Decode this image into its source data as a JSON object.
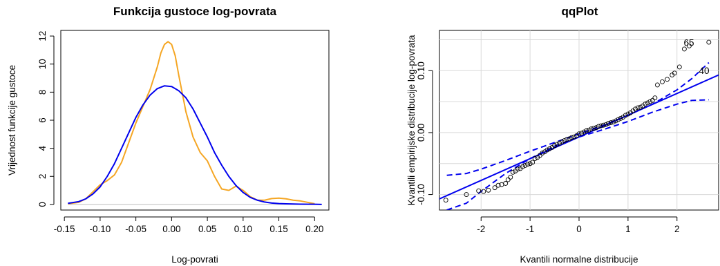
{
  "chart_data": [
    {
      "type": "line",
      "title": "Funkcija gustoce log-povrata",
      "xlabel": "Log-povrati",
      "ylabel": "Vrijednost funkcije gustoce",
      "xlim": [
        -0.155,
        0.22
      ],
      "ylim": [
        -0.4,
        12.4
      ],
      "xticks": [
        "-0.15",
        "-0.10",
        "-0.05",
        "0.00",
        "0.05",
        "0.10",
        "0.15",
        "0.20"
      ],
      "yticks": [
        "0",
        "2",
        "4",
        "6",
        "8",
        "10",
        "12"
      ],
      "grid": false,
      "colors": {
        "empirical": "#f5a623",
        "normal": "#0000ee",
        "zero_line": "#bdbdbd"
      },
      "series": [
        {
          "x": [
            -0.145,
            -0.13,
            -0.12,
            -0.11,
            -0.1,
            -0.09,
            -0.08,
            -0.07,
            -0.06,
            -0.05,
            -0.04,
            -0.03,
            -0.02,
            -0.015,
            -0.01,
            -0.005,
            0,
            0.005,
            0.01,
            0.02,
            0.03,
            0.04,
            0.05,
            0.06,
            0.07,
            0.08,
            0.09,
            0.1,
            0.11,
            0.12,
            0.13,
            0.14,
            0.15,
            0.16,
            0.17,
            0.18,
            0.19,
            0.2
          ],
          "values": [
            0.05,
            0.15,
            0.4,
            0.9,
            1.4,
            1.7,
            2.1,
            3.0,
            4.4,
            5.8,
            7.0,
            8.2,
            9.8,
            10.8,
            11.4,
            11.6,
            11.4,
            10.6,
            9.2,
            6.6,
            4.8,
            3.7,
            3.1,
            2.0,
            1.1,
            1.0,
            1.3,
            1.0,
            0.55,
            0.3,
            0.3,
            0.42,
            0.45,
            0.4,
            0.3,
            0.25,
            0.15,
            0.05
          ]
        },
        {
          "x": [
            -0.145,
            -0.13,
            -0.12,
            -0.11,
            -0.1,
            -0.09,
            -0.08,
            -0.07,
            -0.06,
            -0.05,
            -0.04,
            -0.03,
            -0.02,
            -0.01,
            0,
            0.01,
            0.02,
            0.03,
            0.04,
            0.05,
            0.06,
            0.07,
            0.08,
            0.09,
            0.1,
            0.11,
            0.12,
            0.13,
            0.14,
            0.15,
            0.16,
            0.18,
            0.2,
            0.21
          ],
          "values": [
            0.08,
            0.2,
            0.4,
            0.75,
            1.25,
            2.0,
            2.9,
            4.0,
            5.1,
            6.2,
            7.1,
            7.8,
            8.25,
            8.45,
            8.4,
            8.1,
            7.6,
            6.8,
            5.8,
            4.8,
            3.7,
            2.8,
            2.0,
            1.35,
            0.85,
            0.5,
            0.3,
            0.17,
            0.1,
            0.06,
            0.04,
            0.02,
            0.01,
            0.0
          ]
        }
      ]
    },
    {
      "type": "scatter",
      "title": "qqPlot",
      "xlabel": "Kvantili normalne distribucije",
      "ylabel": "Kvantili empirijske distribucije log-povrata",
      "xlim": [
        -2.85,
        2.85
      ],
      "ylim": [
        -0.125,
        0.165
      ],
      "xticks": [
        "-2",
        "-1",
        "0",
        "1",
        "2"
      ],
      "yticks": [
        "-0.10",
        "0.00",
        "0.10"
      ],
      "grid": true,
      "colors": {
        "points": "#000000",
        "lines": "#0000ee",
        "grid": "#d9d9d9"
      },
      "annotations": [
        {
          "text": "40",
          "x": 2.66,
          "y": 0.1
        },
        {
          "text": "65",
          "x": 2.35,
          "y": 0.145
        }
      ],
      "reference_line": {
        "x": [
          -2.85,
          2.85
        ],
        "values": [
          -0.107,
          0.093
        ]
      },
      "confidence_band": {
        "x": [
          -2.7,
          -2.3,
          -2.0,
          -1.5,
          -1.0,
          -0.5,
          0,
          0.5,
          1.0,
          1.5,
          2.0,
          2.3,
          2.65
        ],
        "upper": [
          -0.069,
          -0.066,
          -0.059,
          -0.045,
          -0.03,
          -0.016,
          -0.002,
          0.012,
          0.028,
          0.046,
          0.069,
          0.087,
          0.113
        ],
        "lower": [
          -0.125,
          -0.114,
          -0.095,
          -0.066,
          -0.042,
          -0.022,
          -0.007,
          0.005,
          0.018,
          0.033,
          0.046,
          0.052,
          0.053
        ]
      },
      "series": [
        {
          "x": [
            -2.72,
            -2.3,
            -2.05,
            -1.95,
            -1.85,
            -1.72,
            -1.65,
            -1.58,
            -1.5,
            -1.45,
            -1.4,
            -1.35,
            -1.3,
            -1.25,
            -1.2,
            -1.15,
            -1.1,
            -1.05,
            -1.0,
            -0.95,
            -0.9,
            -0.85,
            -0.8,
            -0.75,
            -0.7,
            -0.65,
            -0.6,
            -0.55,
            -0.5,
            -0.45,
            -0.4,
            -0.35,
            -0.3,
            -0.25,
            -0.2,
            -0.15,
            -0.1,
            -0.05,
            0.0,
            0.05,
            0.1,
            0.15,
            0.2,
            0.25,
            0.3,
            0.35,
            0.4,
            0.45,
            0.5,
            0.55,
            0.6,
            0.65,
            0.7,
            0.75,
            0.8,
            0.85,
            0.9,
            0.95,
            1.0,
            1.05,
            1.1,
            1.15,
            1.2,
            1.25,
            1.3,
            1.35,
            1.4,
            1.45,
            1.5,
            1.55,
            1.6,
            1.7,
            1.8,
            1.9,
            1.95,
            2.05,
            2.15,
            2.25,
            2.65
          ],
          "values": [
            -0.109,
            -0.1,
            -0.094,
            -0.095,
            -0.093,
            -0.089,
            -0.085,
            -0.084,
            -0.082,
            -0.076,
            -0.072,
            -0.064,
            -0.062,
            -0.059,
            -0.058,
            -0.055,
            -0.053,
            -0.051,
            -0.05,
            -0.048,
            -0.042,
            -0.04,
            -0.037,
            -0.033,
            -0.031,
            -0.028,
            -0.026,
            -0.024,
            -0.021,
            -0.019,
            -0.017,
            -0.015,
            -0.013,
            -0.011,
            -0.01,
            -0.008,
            -0.007,
            -0.005,
            -0.002,
            -0.001,
            0.001,
            0.003,
            0.004,
            0.006,
            0.007,
            0.008,
            0.01,
            0.011,
            0.012,
            0.013,
            0.015,
            0.016,
            0.017,
            0.019,
            0.021,
            0.023,
            0.025,
            0.028,
            0.03,
            0.032,
            0.035,
            0.038,
            0.04,
            0.041,
            0.043,
            0.046,
            0.048,
            0.05,
            0.052,
            0.056,
            0.077,
            0.082,
            0.086,
            0.093,
            0.096,
            0.106,
            0.135,
            0.14,
            0.146
          ]
        }
      ]
    }
  ]
}
